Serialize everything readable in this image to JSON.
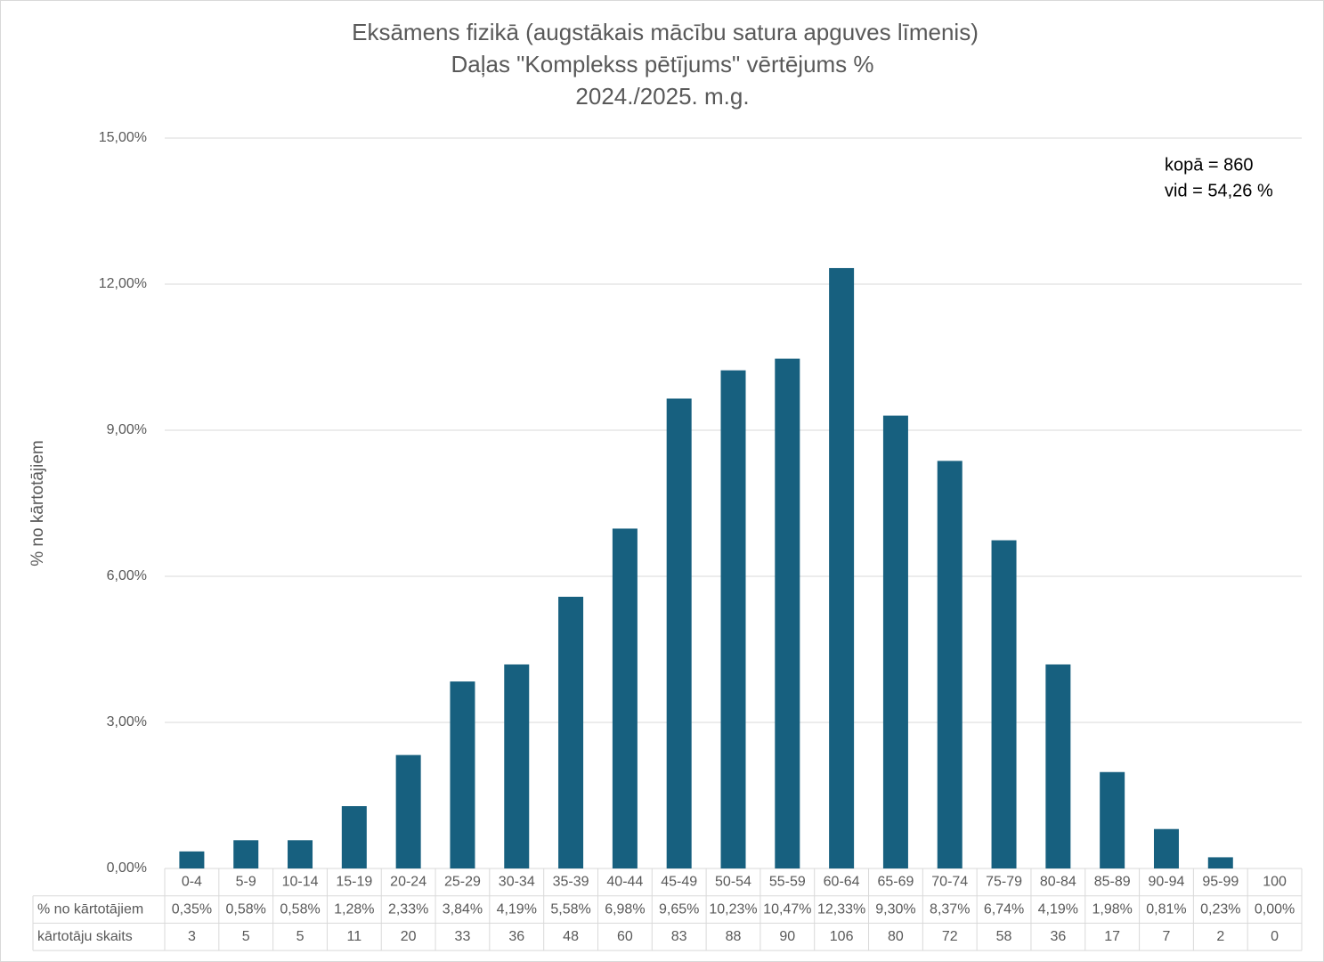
{
  "chart_data": {
    "type": "bar",
    "title_lines": [
      "Eksāmens fizikā (augstākais mācību satura apguves līmenis)",
      "Daļas \"Komplekss pētījums\" vērtējums %",
      "2024./2025. m.g."
    ],
    "y_label": "% no kārtotājiem",
    "annotations": [
      "kopā = 860",
      "vid = 54,26 %"
    ],
    "categories": [
      "0-4",
      "5-9",
      "10-14",
      "15-19",
      "20-24",
      "25-29",
      "30-34",
      "35-39",
      "40-44",
      "45-49",
      "50-54",
      "55-59",
      "60-64",
      "65-69",
      "70-74",
      "75-79",
      "80-84",
      "85-89",
      "90-94",
      "95-99",
      "100"
    ],
    "series": [
      {
        "name": "% no kārtotājiem",
        "color": "#17607f",
        "values": [
          0.35,
          0.58,
          0.58,
          1.28,
          2.33,
          3.84,
          4.19,
          5.58,
          6.98,
          9.65,
          10.23,
          10.47,
          12.33,
          9.3,
          8.37,
          6.74,
          4.19,
          1.98,
          0.81,
          0.23,
          0.0
        ],
        "value_labels": [
          "0,35%",
          "0,58%",
          "0,58%",
          "1,28%",
          "2,33%",
          "3,84%",
          "4,19%",
          "5,58%",
          "6,98%",
          "9,65%",
          "10,23%",
          "10,47%",
          "12,33%",
          "9,30%",
          "8,37%",
          "6,74%",
          "4,19%",
          "1,98%",
          "0,81%",
          "0,23%",
          "0,00%"
        ]
      }
    ],
    "table_rows": [
      {
        "name": "kārtotāju skaits",
        "values": [
          3,
          5,
          5,
          11,
          20,
          33,
          36,
          48,
          60,
          83,
          88,
          90,
          106,
          80,
          72,
          58,
          36,
          17,
          7,
          2,
          0
        ]
      }
    ],
    "ylim": [
      0,
      15
    ],
    "yticks": [
      {
        "value": 0,
        "label": "0,00%"
      },
      {
        "value": 3,
        "label": "3,00%"
      },
      {
        "value": 6,
        "label": "6,00%"
      },
      {
        "value": 9,
        "label": "9,00%"
      },
      {
        "value": 12,
        "label": "12,00%"
      },
      {
        "value": 15,
        "label": "15,00%"
      }
    ],
    "grid": true
  }
}
